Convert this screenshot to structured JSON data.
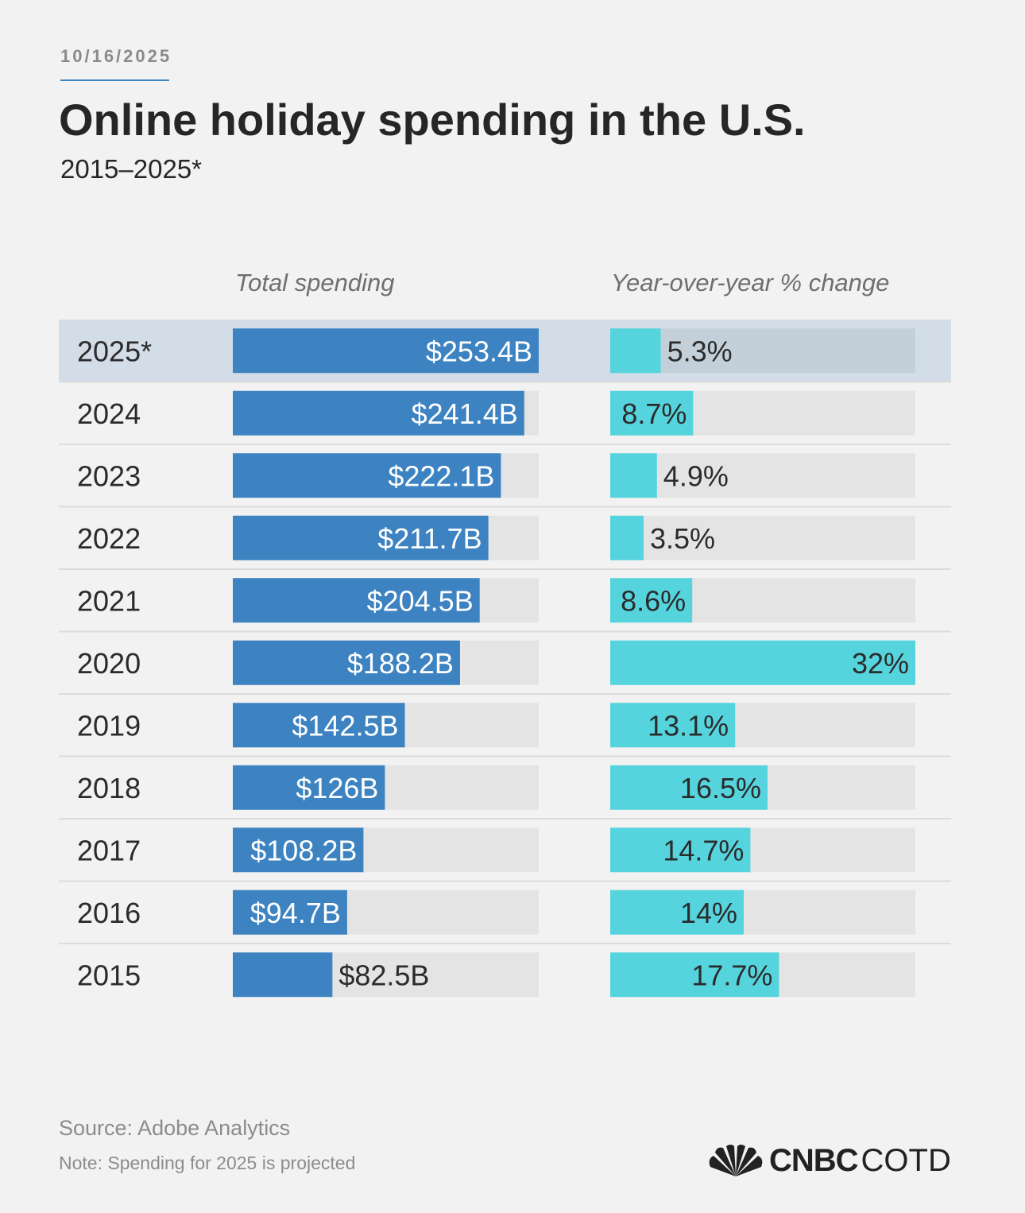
{
  "date": "10/16/2025",
  "title": "Online holiday spending in the U.S.",
  "subtitle": "2015–2025*",
  "source": "Source: Adobe Analytics",
  "note": "Note: Spending for 2025 is projected",
  "logo": {
    "bold": "CNBC",
    "light": "COTD",
    "icon": "nbc-peacock-icon"
  },
  "colors": {
    "spending": "#3d83c1",
    "change": "#56d4de",
    "track": "#e4e4e4",
    "highlight_row": "#d2dde8",
    "highlight_track": "#c3d0da",
    "divider": "#dcdcdc"
  },
  "chart_data": {
    "type": "bar",
    "orientation": "horizontal",
    "categories": [
      "2025*",
      "2024",
      "2023",
      "2022",
      "2021",
      "2020",
      "2019",
      "2018",
      "2017",
      "2016",
      "2015"
    ],
    "highlight": "2025*",
    "series": [
      {
        "name": "Total spending",
        "unit": "$B",
        "values": [
          253.4,
          241.4,
          222.1,
          211.7,
          204.5,
          188.2,
          142.5,
          126,
          108.2,
          94.7,
          82.5
        ],
        "labels": [
          "$253.4B",
          "$241.4B",
          "$222.1B",
          "$211.7B",
          "$204.5B",
          "$188.2B",
          "$142.5B",
          "$126B",
          "$108.2B",
          "$94.7B",
          "$82.5B"
        ],
        "max": 253.4
      },
      {
        "name": "Year-over-year % change",
        "unit": "%",
        "values": [
          5.3,
          8.7,
          4.9,
          3.5,
          8.6,
          32,
          13.1,
          16.5,
          14.7,
          14,
          17.7
        ],
        "labels": [
          "5.3%",
          "8.7%",
          "4.9%",
          "3.5%",
          "8.6%",
          "32%",
          "13.1%",
          "16.5%",
          "14.7%",
          "14%",
          "17.7%"
        ],
        "max": 32
      }
    ]
  }
}
